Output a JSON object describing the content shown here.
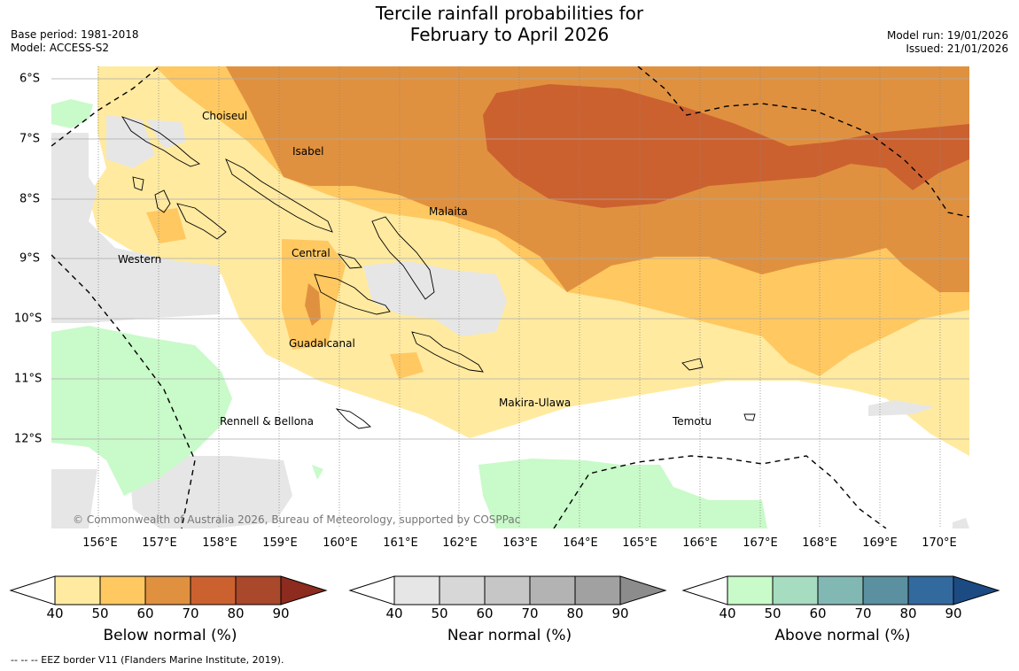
{
  "title_line1": "Tercile rainfall probabilities for",
  "title_line2": "February to April 2026",
  "meta_left": {
    "base_period": "Base period: 1981-2018",
    "model": "Model: ACCESS-S2"
  },
  "meta_right": {
    "model_run": "Model run: 19/01/2026",
    "issued": "Issued: 21/01/2026"
  },
  "longitude_labels": [
    "156°E",
    "157°E",
    "158°E",
    "159°E",
    "160°E",
    "161°E",
    "162°E",
    "163°E",
    "164°E",
    "165°E",
    "166°E",
    "167°E",
    "168°E",
    "169°E",
    "170°E"
  ],
  "latitude_labels": [
    "6°S",
    "7°S",
    "8°S",
    "9°S",
    "10°S",
    "11°S",
    "12°S"
  ],
  "regions": [
    {
      "name": "Choiseul"
    },
    {
      "name": "Isabel"
    },
    {
      "name": "Malaita"
    },
    {
      "name": "Western"
    },
    {
      "name": "Central"
    },
    {
      "name": "Guadalcanal"
    },
    {
      "name": "Makira-Ulawa"
    },
    {
      "name": "Rennell & Bellona"
    },
    {
      "name": "Temotu"
    }
  ],
  "copyright": "© Commonwealth of Australia 2026, Bureau of Meteorology, supported by COSPPac",
  "legends": [
    {
      "title": "Below normal (%)",
      "ticks": [
        "40",
        "50",
        "60",
        "70",
        "80",
        "90"
      ],
      "colors": [
        "#ffeaa0",
        "#ffc861",
        "#e0913f",
        "#cc6130",
        "#a9482a",
        "#8c2b1e"
      ]
    },
    {
      "title": "Near normal (%)",
      "ticks": [
        "40",
        "50",
        "60",
        "70",
        "80",
        "90"
      ],
      "colors": [
        "#e6e6e6",
        "#d7d7d7",
        "#c6c6c6",
        "#b3b3b3",
        "#a1a1a1",
        "#8c8c8c"
      ]
    },
    {
      "title": "Above normal (%)",
      "ticks": [
        "40",
        "50",
        "60",
        "70",
        "80",
        "90"
      ],
      "colors": [
        "#c9fac9",
        "#a6dcc0",
        "#82b8b3",
        "#5a90a0",
        "#336a9e",
        "#1c4b83"
      ]
    }
  ],
  "footer": "--  --  -- EEZ border V11 (Flanders Marine Institute, 2019)."
}
